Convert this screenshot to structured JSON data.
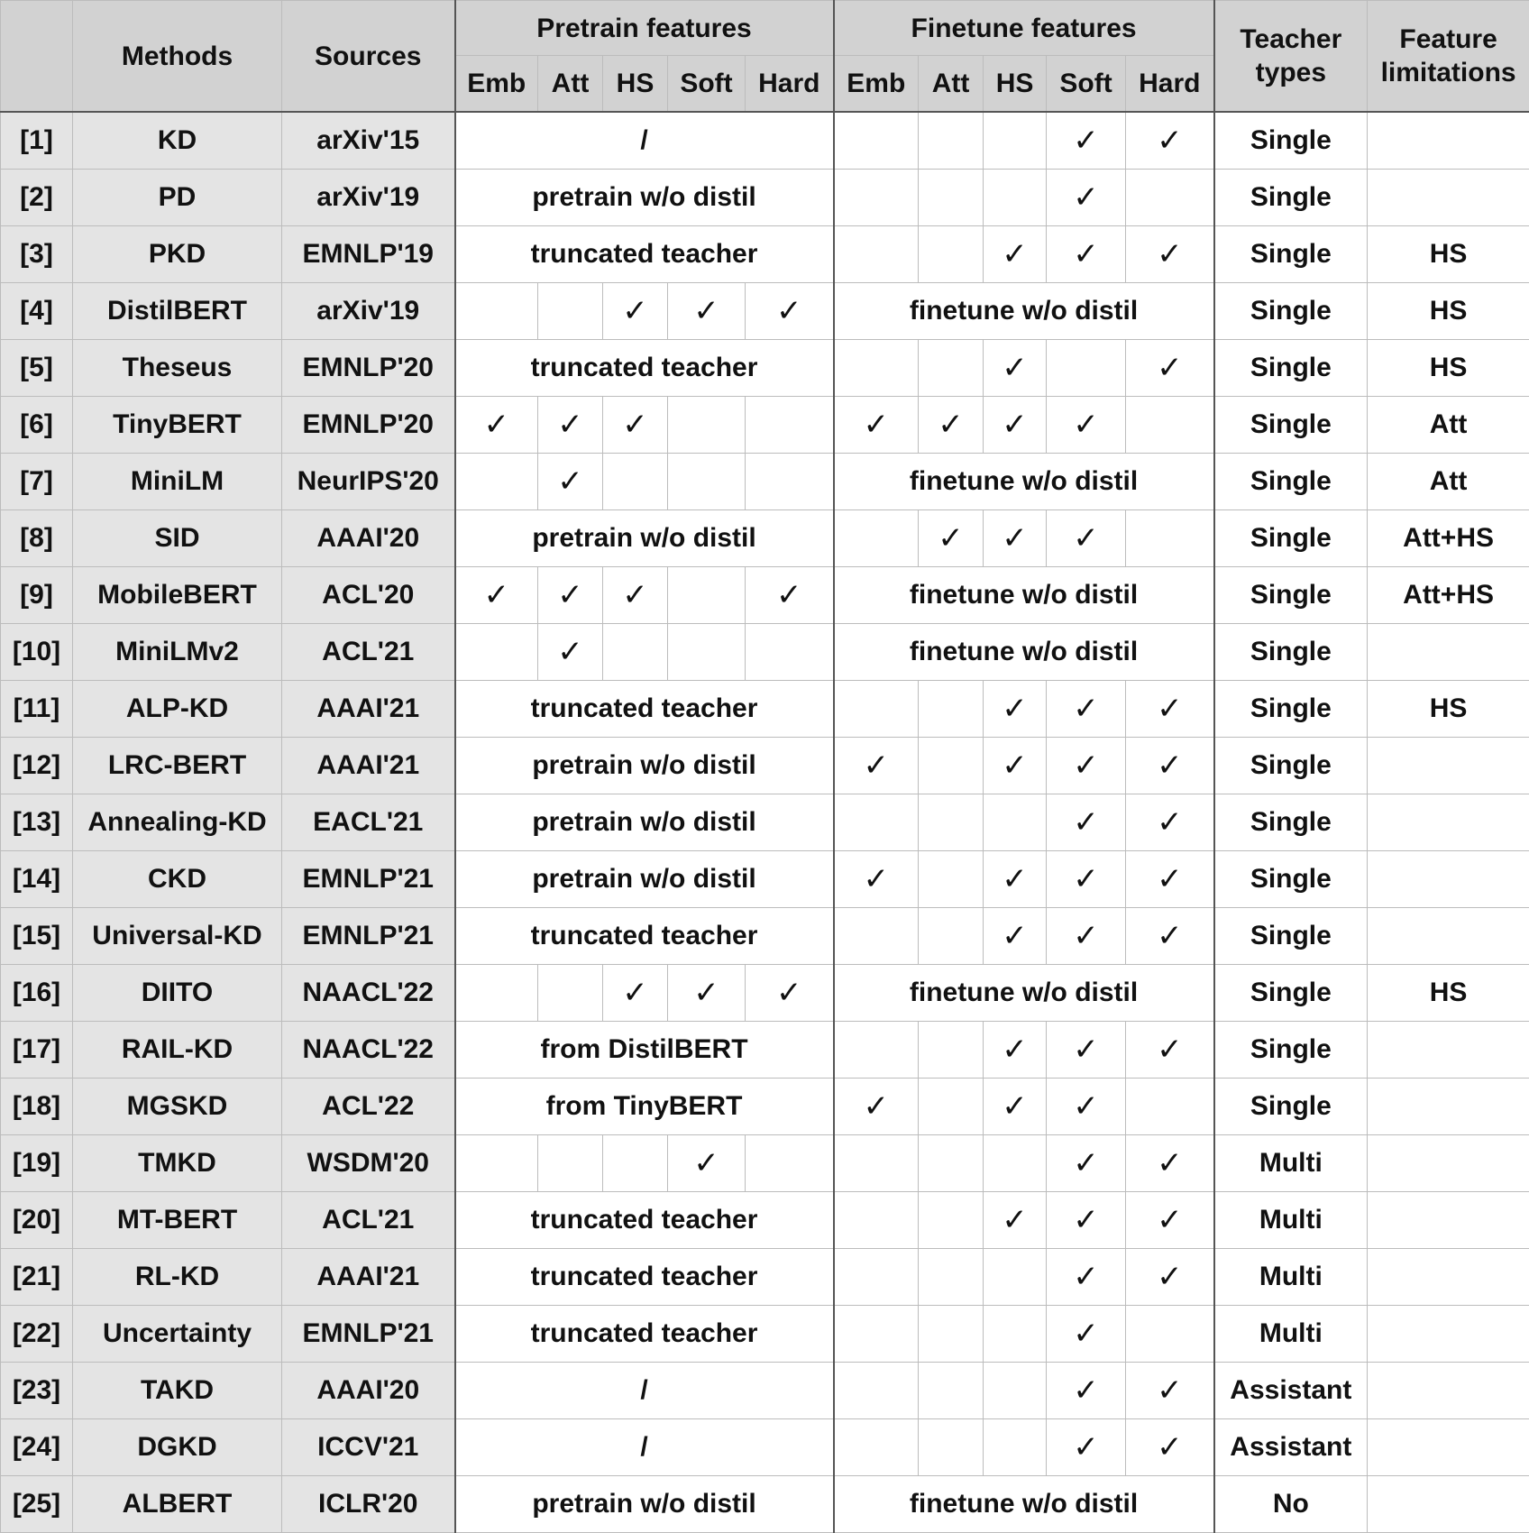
{
  "header": {
    "corner": "",
    "methods": "Methods",
    "sources": "Sources",
    "pretrain": "Pretrain features",
    "finetune": "Finetune features",
    "teacher": [
      "Teacher",
      "types"
    ],
    "limitation": [
      "Feature",
      "limitations"
    ],
    "sub_cols": [
      "Emb",
      "Att",
      "HS",
      "Soft",
      "Hard"
    ]
  },
  "check_symbol": "✓",
  "rows": [
    {
      "ref": "[1]",
      "method": "KD",
      "source": "arXiv'15",
      "pre": {
        "text": "/"
      },
      "fin": {
        "checks": [
          0,
          0,
          0,
          1,
          1
        ]
      },
      "teacher": "Single",
      "limit": ""
    },
    {
      "ref": "[2]",
      "method": "PD",
      "source": "arXiv'19",
      "pre": {
        "text": "pretrain w/o distil"
      },
      "fin": {
        "checks": [
          0,
          0,
          0,
          1,
          0
        ]
      },
      "teacher": "Single",
      "limit": ""
    },
    {
      "ref": "[3]",
      "method": "PKD",
      "source": "EMNLP'19",
      "pre": {
        "text": "truncated teacher"
      },
      "fin": {
        "checks": [
          0,
          0,
          1,
          1,
          1
        ]
      },
      "teacher": "Single",
      "limit": "HS"
    },
    {
      "ref": "[4]",
      "method": "DistilBERT",
      "source": "arXiv'19",
      "pre": {
        "checks": [
          0,
          0,
          1,
          1,
          1
        ]
      },
      "fin": {
        "text": "finetune w/o distil"
      },
      "teacher": "Single",
      "limit": "HS"
    },
    {
      "ref": "[5]",
      "method": "Theseus",
      "source": "EMNLP'20",
      "pre": {
        "text": "truncated teacher"
      },
      "fin": {
        "checks": [
          0,
          0,
          1,
          0,
          1
        ]
      },
      "teacher": "Single",
      "limit": "HS"
    },
    {
      "ref": "[6]",
      "method": "TinyBERT",
      "source": "EMNLP'20",
      "pre": {
        "checks": [
          1,
          1,
          1,
          0,
          0
        ]
      },
      "fin": {
        "checks": [
          1,
          1,
          1,
          1,
          0
        ]
      },
      "teacher": "Single",
      "limit": "Att"
    },
    {
      "ref": "[7]",
      "method": "MiniLM",
      "source": "NeurIPS'20",
      "pre": {
        "checks": [
          0,
          1,
          0,
          0,
          0
        ]
      },
      "fin": {
        "text": "finetune w/o distil"
      },
      "teacher": "Single",
      "limit": "Att"
    },
    {
      "ref": "[8]",
      "method": "SID",
      "source": "AAAI'20",
      "pre": {
        "text": "pretrain w/o distil"
      },
      "fin": {
        "checks": [
          0,
          1,
          1,
          1,
          0
        ]
      },
      "teacher": "Single",
      "limit": "Att+HS"
    },
    {
      "ref": "[9]",
      "method": "MobileBERT",
      "source": "ACL'20",
      "pre": {
        "checks": [
          1,
          1,
          1,
          0,
          1
        ]
      },
      "fin": {
        "text": "finetune w/o distil"
      },
      "teacher": "Single",
      "limit": "Att+HS"
    },
    {
      "ref": "[10]",
      "method": "MiniLMv2",
      "source": "ACL'21",
      "pre": {
        "checks": [
          0,
          1,
          0,
          0,
          0
        ]
      },
      "fin": {
        "text": "finetune w/o distil"
      },
      "teacher": "Single",
      "limit": ""
    },
    {
      "ref": "[11]",
      "method": "ALP-KD",
      "source": "AAAI'21",
      "pre": {
        "text": "truncated teacher"
      },
      "fin": {
        "checks": [
          0,
          0,
          1,
          1,
          1
        ]
      },
      "teacher": "Single",
      "limit": "HS"
    },
    {
      "ref": "[12]",
      "method": "LRC-BERT",
      "source": "AAAI'21",
      "pre": {
        "text": "pretrain w/o distil"
      },
      "fin": {
        "checks": [
          1,
          0,
          1,
          1,
          1
        ]
      },
      "teacher": "Single",
      "limit": ""
    },
    {
      "ref": "[13]",
      "method": "Annealing-KD",
      "source": "EACL'21",
      "pre": {
        "text": "pretrain w/o distil"
      },
      "fin": {
        "checks": [
          0,
          0,
          0,
          1,
          1
        ]
      },
      "teacher": "Single",
      "limit": ""
    },
    {
      "ref": "[14]",
      "method": "CKD",
      "source": "EMNLP'21",
      "pre": {
        "text": "pretrain w/o distil"
      },
      "fin": {
        "checks": [
          1,
          0,
          1,
          1,
          1
        ]
      },
      "teacher": "Single",
      "limit": ""
    },
    {
      "ref": "[15]",
      "method": "Universal-KD",
      "source": "EMNLP'21",
      "pre": {
        "text": "truncated teacher"
      },
      "fin": {
        "checks": [
          0,
          0,
          1,
          1,
          1
        ]
      },
      "teacher": "Single",
      "limit": ""
    },
    {
      "ref": "[16]",
      "method": "DIITO",
      "source": "NAACL'22",
      "pre": {
        "checks": [
          0,
          0,
          1,
          1,
          1
        ]
      },
      "fin": {
        "text": "finetune w/o distil"
      },
      "teacher": "Single",
      "limit": "HS"
    },
    {
      "ref": "[17]",
      "method": "RAIL-KD",
      "source": "NAACL'22",
      "pre": {
        "text": "from DistilBERT"
      },
      "fin": {
        "checks": [
          0,
          0,
          1,
          1,
          1
        ]
      },
      "teacher": "Single",
      "limit": ""
    },
    {
      "ref": "[18]",
      "method": "MGSKD",
      "source": "ACL'22",
      "pre": {
        "text": "from TinyBERT"
      },
      "fin": {
        "checks": [
          1,
          0,
          1,
          1,
          0
        ]
      },
      "teacher": "Single",
      "limit": ""
    },
    {
      "ref": "[19]",
      "method": "TMKD",
      "source": "WSDM'20",
      "pre": {
        "checks": [
          0,
          0,
          0,
          1,
          0
        ]
      },
      "fin": {
        "checks": [
          0,
          0,
          0,
          1,
          1
        ]
      },
      "teacher": "Multi",
      "limit": ""
    },
    {
      "ref": "[20]",
      "method": "MT-BERT",
      "source": "ACL'21",
      "pre": {
        "text": "truncated teacher"
      },
      "fin": {
        "checks": [
          0,
          0,
          1,
          1,
          1
        ]
      },
      "teacher": "Multi",
      "limit": ""
    },
    {
      "ref": "[21]",
      "method": "RL-KD",
      "source": "AAAI'21",
      "pre": {
        "text": "truncated teacher"
      },
      "fin": {
        "checks": [
          0,
          0,
          0,
          1,
          1
        ]
      },
      "teacher": "Multi",
      "limit": ""
    },
    {
      "ref": "[22]",
      "method": "Uncertainty",
      "source": "EMNLP'21",
      "pre": {
        "text": "truncated teacher"
      },
      "fin": {
        "checks": [
          0,
          0,
          0,
          1,
          0
        ]
      },
      "teacher": "Multi",
      "limit": ""
    },
    {
      "ref": "[23]",
      "method": "TAKD",
      "source": "AAAI'20",
      "pre": {
        "text": "/"
      },
      "fin": {
        "checks": [
          0,
          0,
          0,
          1,
          1
        ]
      },
      "teacher": "Assistant",
      "limit": ""
    },
    {
      "ref": "[24]",
      "method": "DGKD",
      "source": "ICCV'21",
      "pre": {
        "text": "/"
      },
      "fin": {
        "checks": [
          0,
          0,
          0,
          1,
          1
        ]
      },
      "teacher": "Assistant",
      "limit": ""
    },
    {
      "ref": "[25]",
      "method": "ALBERT",
      "source": "ICLR'20",
      "pre": {
        "text": "pretrain w/o distil"
      },
      "fin": {
        "text": "finetune w/o distil"
      },
      "teacher": "No",
      "limit": ""
    }
  ]
}
